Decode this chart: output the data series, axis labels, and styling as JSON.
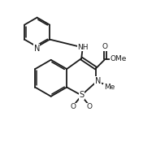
{
  "bg_color": "#ffffff",
  "line_color": "#1a1a1a",
  "line_width": 1.3,
  "font_size": 6.5,
  "figsize": [
    1.92,
    1.8
  ],
  "dpi": 100,
  "xlim": [
    0,
    10
  ],
  "ylim": [
    0,
    10
  ]
}
